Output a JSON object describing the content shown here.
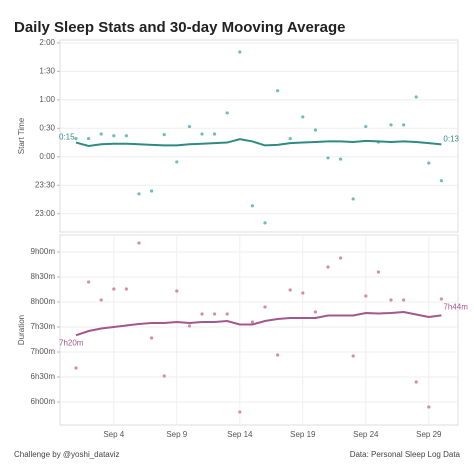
{
  "title": "Daily Sleep Stats and 30-day Mooving Average",
  "footer_left": "Challenge by @yoshi_dataviz",
  "footer_right": "Data: Personal Sleep Log Data",
  "chart_data": [
    {
      "type": "scatter",
      "y_label": "Start Time",
      "ylim": [
        -1.32,
        2.05
      ],
      "yticks": [
        {
          "value": -1,
          "label": "23:00"
        },
        {
          "value": -0.5,
          "label": "23:30"
        },
        {
          "value": 0,
          "label": "0:00"
        },
        {
          "value": 0.5,
          "label": "0:30"
        },
        {
          "value": 1,
          "label": "1:00"
        },
        {
          "value": 1.5,
          "label": "1:30"
        },
        {
          "value": 2,
          "label": "2:00"
        }
      ],
      "grid": true,
      "series": [
        {
          "mark": "dot",
          "color": "#6cbfb2",
          "values": [
            0.32,
            0.32,
            0.4,
            0.37,
            0.37,
            -0.65,
            -0.6,
            0.39,
            -0.09,
            0.53,
            0.4,
            0.4,
            0.77,
            1.84,
            -0.86,
            -1.16,
            1.16,
            0.32,
            0.7,
            0.47,
            -0.02,
            -0.04,
            -0.74,
            0.53,
            0.26,
            0.56,
            0.56,
            1.05,
            -0.11,
            -0.42
          ]
        },
        {
          "mark": "line",
          "color": "#2e8b84",
          "values": [
            0.25,
            0.19,
            0.22,
            0.23,
            0.23,
            0.22,
            0.21,
            0.2,
            0.2,
            0.22,
            0.23,
            0.24,
            0.25,
            0.31,
            0.27,
            0.2,
            0.21,
            0.24,
            0.25,
            0.26,
            0.27,
            0.27,
            0.26,
            0.28,
            0.27,
            0.26,
            0.27,
            0.26,
            0.24,
            0.217
          ],
          "value_labels": [
            "0:15",
            null,
            null,
            null,
            null,
            null,
            null,
            null,
            null,
            null,
            null,
            null,
            null,
            null,
            null,
            null,
            null,
            null,
            null,
            null,
            null,
            null,
            null,
            null,
            null,
            null,
            null,
            null,
            null,
            "0:13"
          ]
        }
      ]
    },
    {
      "type": "scatter",
      "y_label": "Duration",
      "categories": [
        null,
        null,
        null,
        "Sep 4",
        null,
        null,
        null,
        null,
        "Sep 9",
        null,
        null,
        null,
        null,
        "Sep 14",
        null,
        null,
        null,
        null,
        "Sep 19",
        null,
        null,
        null,
        null,
        "Sep 24",
        null,
        null,
        null,
        null,
        "Sep 29",
        null
      ],
      "ylim": [
        5.54,
        9.34
      ],
      "yticks": [
        {
          "value": 6,
          "label": "6h00m"
        },
        {
          "value": 6.5,
          "label": "6h30m"
        },
        {
          "value": 7,
          "label": "7h00m"
        },
        {
          "value": 7.5,
          "label": "7h30m"
        },
        {
          "value": 8,
          "label": "8h00m"
        },
        {
          "value": 8.5,
          "label": "8h30m"
        },
        {
          "value": 9,
          "label": "9h00m"
        }
      ],
      "grid": true,
      "series": [
        {
          "mark": "dot",
          "color": "#d98aa8",
          "values": [
            6.68,
            8.4,
            8.04,
            8.26,
            8.26,
            9.18,
            7.28,
            6.52,
            8.22,
            7.52,
            7.76,
            7.76,
            7.76,
            5.8,
            7.6,
            7.9,
            6.94,
            8.24,
            8.18,
            7.8,
            8.7,
            8.88,
            6.92,
            8.12,
            8.6,
            8.04,
            8.04,
            6.4,
            5.9,
            8.06
          ]
        },
        {
          "mark": "line",
          "color": "#a3578f",
          "values": [
            7.333,
            7.42,
            7.47,
            7.5,
            7.53,
            7.56,
            7.58,
            7.58,
            7.6,
            7.58,
            7.6,
            7.6,
            7.62,
            7.55,
            7.55,
            7.62,
            7.66,
            7.68,
            7.68,
            7.68,
            7.73,
            7.73,
            7.73,
            7.78,
            7.77,
            7.78,
            7.8,
            7.75,
            7.7,
            7.733
          ],
          "value_labels": [
            "7h20m",
            null,
            null,
            null,
            null,
            null,
            null,
            null,
            null,
            null,
            null,
            null,
            null,
            null,
            null,
            null,
            null,
            null,
            null,
            null,
            null,
            null,
            null,
            null,
            null,
            null,
            null,
            null,
            null,
            "7h44m"
          ]
        }
      ]
    }
  ]
}
